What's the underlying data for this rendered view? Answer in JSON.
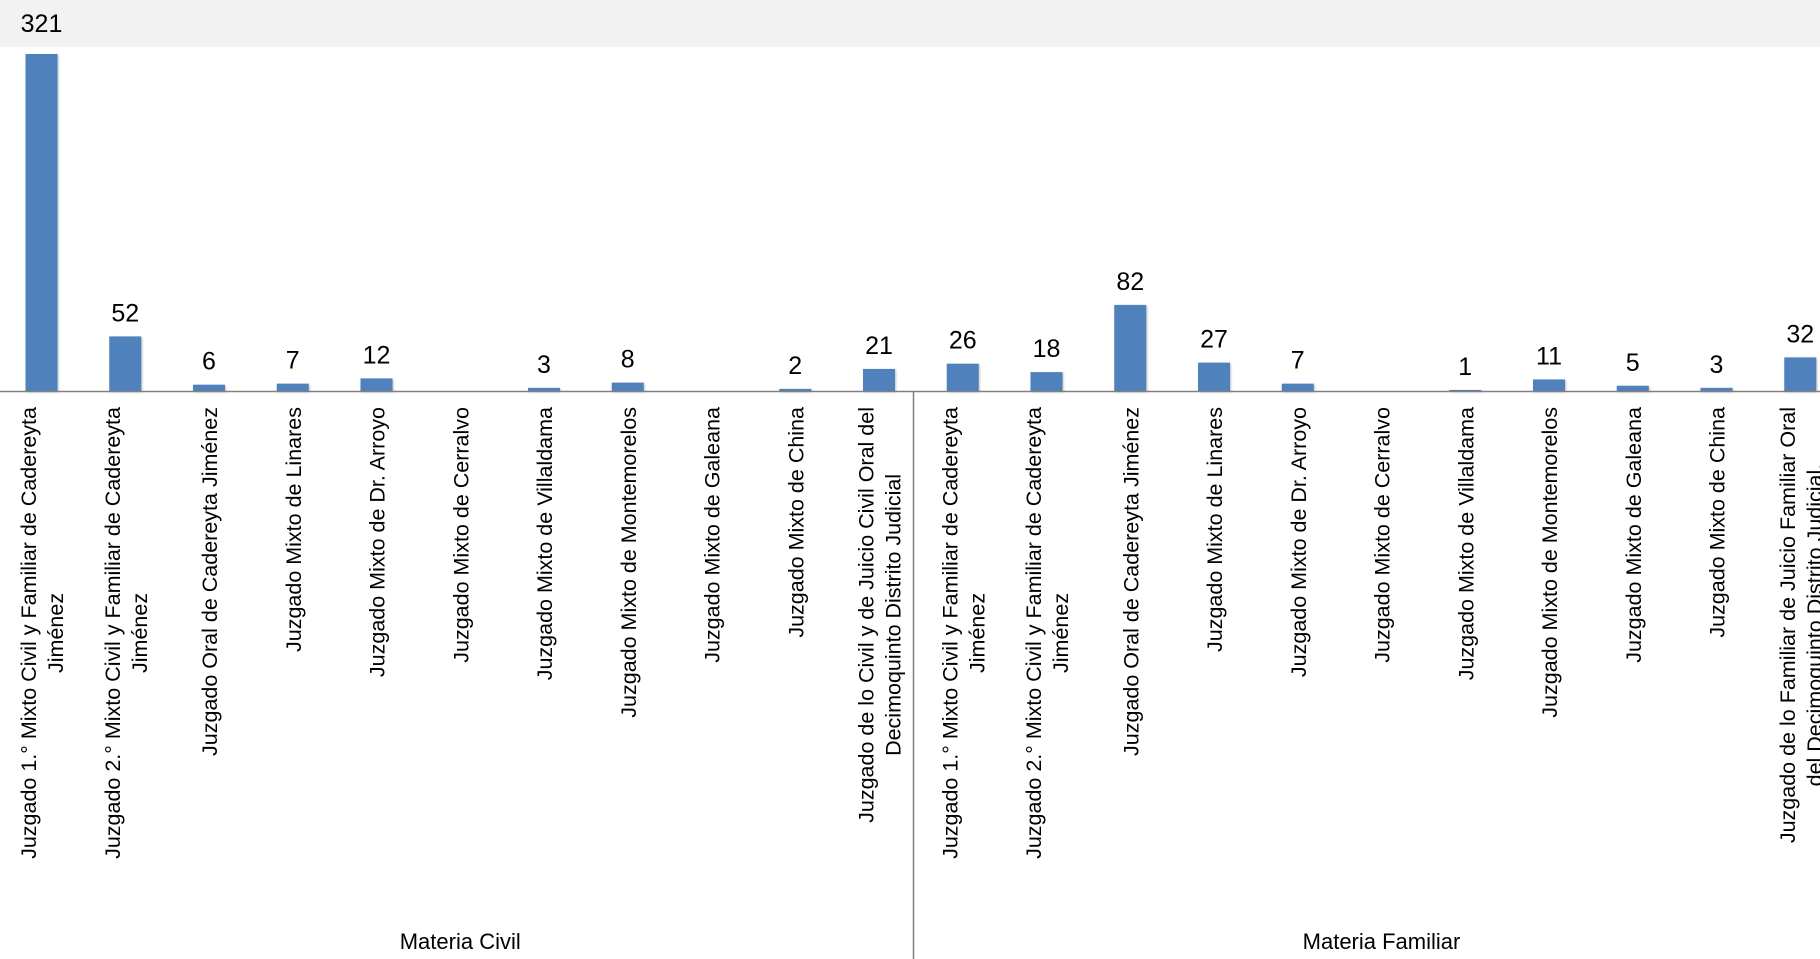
{
  "chart_data": {
    "type": "bar",
    "bar_color": "#4F81BD",
    "groups": [
      {
        "name": "Materia Civil",
        "categories": [
          [
            "Juzgado 1.° Mixto Civil y Familiar de Cadereyta",
            "Jiménez"
          ],
          [
            "Juzgado 2.° Mixto Civil y Familiar de Cadereyta",
            "Jiménez"
          ],
          [
            "Juzgado Oral de Cadereyta Jiménez"
          ],
          [
            "Juzgado Mixto de Linares"
          ],
          [
            "Juzgado Mixto de Dr. Arroyo"
          ],
          [
            "Juzgado Mixto de Cerralvo"
          ],
          [
            "Juzgado Mixto de Villaldama"
          ],
          [
            "Juzgado Mixto de Montemorelos"
          ],
          [
            "Juzgado Mixto de Galeana"
          ],
          [
            "Juzgado Mixto de China"
          ],
          [
            "Juzgado de lo Civil y de Juicio Civil Oral del",
            "Decimoquinto Distrito Judicial"
          ]
        ],
        "values": [
          321,
          52,
          6,
          7,
          12,
          null,
          3,
          8,
          null,
          2,
          21
        ]
      },
      {
        "name": "Materia Familiar",
        "categories": [
          [
            "Juzgado 1.° Mixto Civil y Familiar de Cadereyta",
            "Jiménez"
          ],
          [
            "Juzgado 2.° Mixto Civil y Familiar de Cadereyta",
            "Jiménez"
          ],
          [
            "Juzgado Oral de Cadereyta Jiménez"
          ],
          [
            "Juzgado Mixto de Linares"
          ],
          [
            "Juzgado Mixto de Dr. Arroyo"
          ],
          [
            "Juzgado Mixto de Cerralvo"
          ],
          [
            "Juzgado Mixto de Villaldama"
          ],
          [
            "Juzgado Mixto de Montemorelos"
          ],
          [
            "Juzgado Mixto de Galeana"
          ],
          [
            "Juzgado Mixto de China"
          ],
          [
            "Juzgado de lo Familiar de Juicio Familiar Oral",
            "del Decimoquinto Distrito Judicial."
          ]
        ],
        "values": [
          26,
          18,
          82,
          27,
          7,
          null,
          1,
          11,
          5,
          3,
          32
        ]
      }
    ],
    "ylim": [
      0,
      321
    ],
    "grid": false,
    "legend": "none"
  }
}
